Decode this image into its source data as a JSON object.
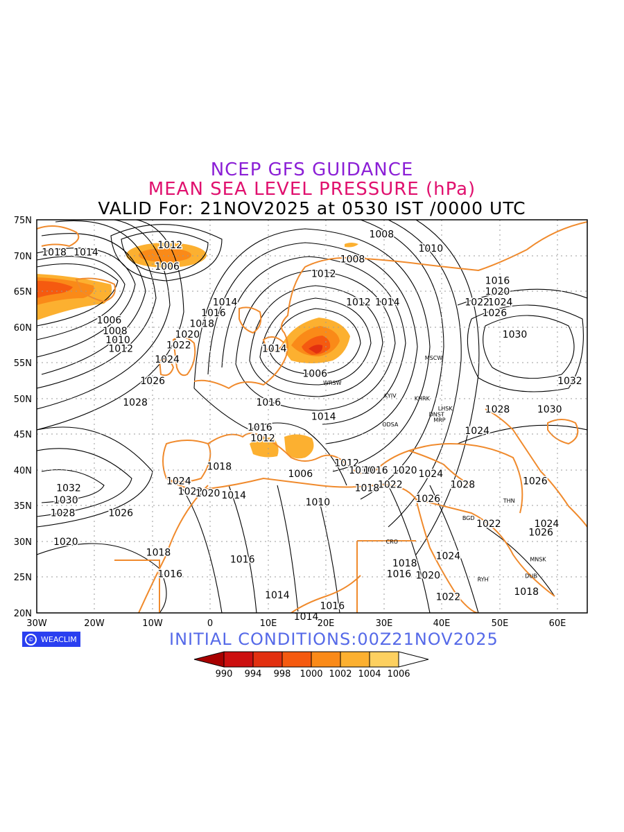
{
  "titles": {
    "line1": "NCEP GFS GUIDANCE",
    "line2": "MEAN SEA LEVEL PRESSURE (hPa)",
    "line3": "VALID For: 21NOV2025 at 0530 IST /0000 UTC"
  },
  "logo": {
    "text": "WEACLIM"
  },
  "initial_conditions": "INITIAL  CONDITIONS:00Z21NOV2025",
  "map": {
    "lat_labels": [
      "75N",
      "70N",
      "65N",
      "60N",
      "55N",
      "50N",
      "45N",
      "40N",
      "35N",
      "30N",
      "25N",
      "20N"
    ],
    "lon_labels": [
      "30W",
      "20W",
      "10W",
      "0",
      "10E",
      "20E",
      "30E",
      "40E",
      "50E",
      "60E"
    ],
    "grid": "dotted",
    "colors": {
      "coast": "#f08a2c",
      "contour": "#000000",
      "grid": "#9a9a9a"
    },
    "contour_labels": [
      {
        "text": "1012",
        "lon": -7,
        "lat": 71.5
      },
      {
        "text": "1006",
        "lon": -7.5,
        "lat": 68.5
      },
      {
        "text": "1018",
        "lon": -27,
        "lat": 70.5
      },
      {
        "text": "1014",
        "lon": -21.5,
        "lat": 70.5
      },
      {
        "text": "1008",
        "lon": 29.5,
        "lat": 73
      },
      {
        "text": "1010",
        "lon": 38,
        "lat": 71
      },
      {
        "text": "1008",
        "lon": 24.5,
        "lat": 69.5
      },
      {
        "text": "1012",
        "lon": 19.5,
        "lat": 67.5
      },
      {
        "text": "1012",
        "lon": 25.5,
        "lat": 63.5
      },
      {
        "text": "1014",
        "lon": 30.5,
        "lat": 63.5
      },
      {
        "text": "1014",
        "lon": 2.5,
        "lat": 63.5
      },
      {
        "text": "1016",
        "lon": 0.5,
        "lat": 62
      },
      {
        "text": "1018",
        "lon": -1.5,
        "lat": 60.5
      },
      {
        "text": "1020",
        "lon": -4,
        "lat": 59
      },
      {
        "text": "1022",
        "lon": -5.5,
        "lat": 57.5
      },
      {
        "text": "1024",
        "lon": -7.5,
        "lat": 55.5
      },
      {
        "text": "1026",
        "lon": -10,
        "lat": 52.5
      },
      {
        "text": "1028",
        "lon": -13,
        "lat": 49.5
      },
      {
        "text": "1006",
        "lon": -17.5,
        "lat": 61
      },
      {
        "text": "1008",
        "lon": -16.5,
        "lat": 59.5
      },
      {
        "text": "1010",
        "lon": -16,
        "lat": 58.2
      },
      {
        "text": "1012",
        "lon": -15.5,
        "lat": 57
      },
      {
        "text": "1014",
        "lon": 11,
        "lat": 57
      },
      {
        "text": "1006",
        "lon": 18,
        "lat": 53.5
      },
      {
        "text": "1016",
        "lon": 10,
        "lat": 49.5
      },
      {
        "text": "1014",
        "lon": 19.5,
        "lat": 47.5
      },
      {
        "text": "1016",
        "lon": 8.5,
        "lat": 46
      },
      {
        "text": "1012",
        "lon": 9,
        "lat": 44.5
      },
      {
        "text": "1018",
        "lon": 1.5,
        "lat": 40.5
      },
      {
        "text": "1006",
        "lon": 15.5,
        "lat": 39.5
      },
      {
        "text": "1012",
        "lon": 23.5,
        "lat": 41
      },
      {
        "text": "1010",
        "lon": 26,
        "lat": 40
      },
      {
        "text": "1016",
        "lon": 28.5,
        "lat": 40
      },
      {
        "text": "1020",
        "lon": 33.5,
        "lat": 40
      },
      {
        "text": "1024",
        "lon": 38,
        "lat": 39.5
      },
      {
        "text": "1022",
        "lon": 31,
        "lat": 38
      },
      {
        "text": "1018",
        "lon": 27,
        "lat": 37.5
      },
      {
        "text": "1028",
        "lon": 43.5,
        "lat": 38
      },
      {
        "text": "1026",
        "lon": 37.5,
        "lat": 36
      },
      {
        "text": "1024",
        "lon": -5.5,
        "lat": 38.5
      },
      {
        "text": "1022",
        "lon": -3.5,
        "lat": 37
      },
      {
        "text": "1020",
        "lon": -0.5,
        "lat": 36.8
      },
      {
        "text": "1014",
        "lon": 4,
        "lat": 36.5
      },
      {
        "text": "1010",
        "lon": 18.5,
        "lat": 35.5
      },
      {
        "text": "1032",
        "lon": -24.5,
        "lat": 37.5
      },
      {
        "text": "1030",
        "lon": -25,
        "lat": 35.8
      },
      {
        "text": "1028",
        "lon": -25.5,
        "lat": 34
      },
      {
        "text": "1026",
        "lon": -15.5,
        "lat": 34
      },
      {
        "text": "1020",
        "lon": -25,
        "lat": 30
      },
      {
        "text": "1018",
        "lon": -9,
        "lat": 28.5
      },
      {
        "text": "1016",
        "lon": -7,
        "lat": 25.5
      },
      {
        "text": "1016",
        "lon": 5.5,
        "lat": 27.5
      },
      {
        "text": "1014",
        "lon": 11.5,
        "lat": 22.5
      },
      {
        "text": "1016",
        "lon": 21,
        "lat": 21
      },
      {
        "text": "1014",
        "lon": 16.5,
        "lat": 19.5
      },
      {
        "text": "1024",
        "lon": 41,
        "lat": 28
      },
      {
        "text": "1018",
        "lon": 33.5,
        "lat": 27
      },
      {
        "text": "1016",
        "lon": 32.5,
        "lat": 25.5
      },
      {
        "text": "1020",
        "lon": 37.5,
        "lat": 25.3
      },
      {
        "text": "1022",
        "lon": 41,
        "lat": 22.3
      },
      {
        "text": "1018",
        "lon": 54.5,
        "lat": 23
      },
      {
        "text": "1022",
        "lon": 48,
        "lat": 32.5
      },
      {
        "text": "1026",
        "lon": 56,
        "lat": 38.5
      },
      {
        "text": "1024",
        "lon": 58,
        "lat": 32.5
      },
      {
        "text": "1026",
        "lon": 57,
        "lat": 31.3
      },
      {
        "text": "1024",
        "lon": 46,
        "lat": 45.5
      },
      {
        "text": "1028",
        "lon": 49.5,
        "lat": 48.5
      },
      {
        "text": "1030",
        "lon": 58.5,
        "lat": 48.5
      },
      {
        "text": "1032",
        "lon": 62,
        "lat": 52.5
      },
      {
        "text": "1030",
        "lon": 52.5,
        "lat": 59
      },
      {
        "text": "1026",
        "lon": 49,
        "lat": 62
      },
      {
        "text": "1024",
        "lon": 50,
        "lat": 63.5
      },
      {
        "text": "1020",
        "lon": 49.5,
        "lat": 65
      },
      {
        "text": "1016",
        "lon": 49.5,
        "lat": 66.5
      },
      {
        "text": "1022",
        "lon": 46,
        "lat": 63.5
      }
    ],
    "city_labels": [
      {
        "text": "MSCW",
        "lon": 38.5,
        "lat": 55.7
      },
      {
        "text": "WRSW",
        "lon": 21,
        "lat": 52.2
      },
      {
        "text": "KYIV",
        "lon": 31,
        "lat": 50.4
      },
      {
        "text": "KHRK",
        "lon": 36.5,
        "lat": 50
      },
      {
        "text": "LHSK",
        "lon": 40.5,
        "lat": 48.6
      },
      {
        "text": "DNST",
        "lon": 39,
        "lat": 47.8
      },
      {
        "text": "MRP",
        "lon": 39.5,
        "lat": 47
      },
      {
        "text": "ODSA",
        "lon": 31,
        "lat": 46.4
      },
      {
        "text": "THN",
        "lon": 51.5,
        "lat": 35.7
      },
      {
        "text": "BGD",
        "lon": 44.5,
        "lat": 33.3
      },
      {
        "text": "CRO",
        "lon": 31.3,
        "lat": 30
      },
      {
        "text": "RYH",
        "lon": 47,
        "lat": 24.7
      },
      {
        "text": "MNSK",
        "lon": 56.5,
        "lat": 27.5
      },
      {
        "text": "DUB",
        "lon": 55.3,
        "lat": 25.2
      }
    ]
  },
  "colorbar": {
    "labels": [
      "990",
      "994",
      "998",
      "1000",
      "1002",
      "1004",
      "1006"
    ],
    "colors": [
      "#a80000",
      "#cc1010",
      "#e23010",
      "#f55a10",
      "#fa8a18",
      "#fcb030",
      "#fdd060"
    ]
  }
}
